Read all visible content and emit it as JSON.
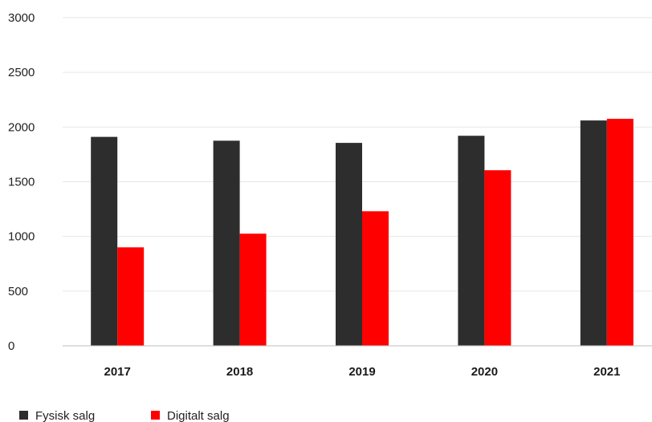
{
  "chart_data": {
    "type": "bar",
    "categories": [
      "2017",
      "2018",
      "2019",
      "2020",
      "2021"
    ],
    "series": [
      {
        "name": "Fysisk salg",
        "color": "#2d2d2d",
        "values": [
          1910,
          1875,
          1855,
          1920,
          2060
        ]
      },
      {
        "name": "Digitalt salg",
        "color": "#ff0000",
        "values": [
          900,
          1025,
          1230,
          1605,
          2075
        ]
      }
    ],
    "ylim": [
      0,
      3000
    ],
    "yticks": [
      0,
      500,
      1000,
      1500,
      2000,
      2500,
      3000
    ],
    "grid": true,
    "legend": "bottom-left"
  }
}
